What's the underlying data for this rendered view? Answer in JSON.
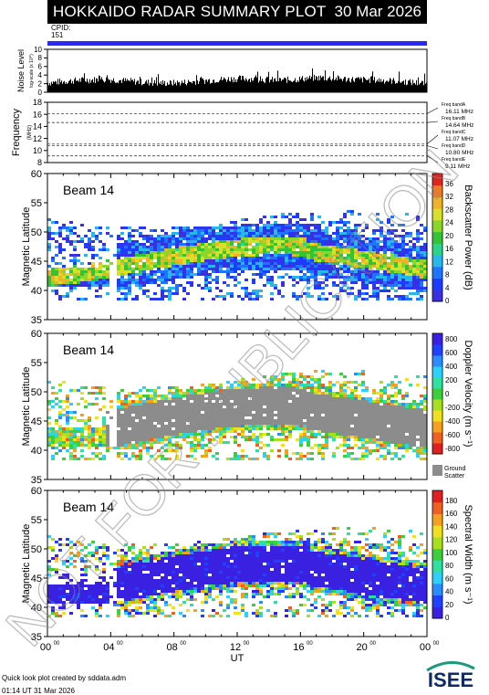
{
  "header": {
    "title": "HOKKAIDO RADAR SUMMARY PLOT",
    "date": "30 Mar 2026"
  },
  "cpid": {
    "label": "CPID:",
    "value": "151"
  },
  "watermark": "NOT FOR PUBLICATION",
  "footer": {
    "line1": "Quick look plot created by sddata.adm",
    "line2": "01:14 UT 31 Mar 2026"
  },
  "logo": "ISEE",
  "chart_data": [
    {
      "type": "bar",
      "ylabel": "Noise Level",
      "ylabel2": "log-scale (x 10^) ",
      "ylim": [
        0,
        10
      ],
      "yticks": [
        "0",
        "2",
        "4",
        "6",
        "8",
        "10"
      ],
      "xlim": [
        0,
        24
      ],
      "values": [
        2.2,
        2.5,
        2.8,
        2.9,
        3.0,
        2.7,
        2.4,
        2.2,
        2.1,
        2.3,
        2.6,
        2.9,
        3.1,
        3.2,
        3.0,
        2.8,
        2.9,
        3.2,
        3.4,
        3.2,
        3.0,
        2.9,
        2.8,
        2.6,
        2.3,
        2.0
      ]
    },
    {
      "type": "line",
      "ylabel": "Frequency",
      "unit": "(MHz)",
      "ylim": [
        8,
        18
      ],
      "yticks": [
        "8",
        "10",
        "12",
        "14",
        "16",
        "18"
      ],
      "bands": [
        {
          "label": "Freq bandA",
          "value": "16.11 MHz",
          "mhz": 16.11
        },
        {
          "label": "Freq bandB",
          "value": "14.64 MHz",
          "mhz": 14.64
        },
        {
          "label": "Freq bandC",
          "value": "11.07 MHz",
          "mhz": 11.07
        },
        {
          "label": "Freq bandD",
          "value": "10.80 MHz",
          "mhz": 10.8
        },
        {
          "label": "Freq bandE",
          "value": "9.11 MHz",
          "mhz": 9.11
        }
      ]
    },
    {
      "type": "heatmap",
      "title": "Beam 14",
      "ylabel": "Magnetic Latitude",
      "ylim": [
        35,
        60
      ],
      "yticks": [
        "35",
        "40",
        "45",
        "50",
        "55",
        "60"
      ],
      "colorbar": {
        "label": "Backscatter Power (dB)",
        "ticks": [
          "0",
          "4",
          "8",
          "12",
          "16",
          "20",
          "24",
          "28",
          "32",
          "36"
        ]
      }
    },
    {
      "type": "heatmap",
      "title": "Beam 14",
      "ylabel": "Magnetic Latitude",
      "ylim": [
        35,
        60
      ],
      "yticks": [
        "35",
        "40",
        "45",
        "50",
        "55",
        "60"
      ],
      "colorbar": {
        "label": "Doppler Velocity (m s⁻¹)",
        "ticks": [
          "800",
          "600",
          "400",
          "200",
          "0",
          "-200",
          "-400",
          "-600",
          "-800"
        ]
      },
      "ground_label": [
        "Ground",
        "Scatter"
      ]
    },
    {
      "type": "heatmap",
      "title": "Beam 14",
      "ylabel": "Magnetic Latitude",
      "ylim": [
        35,
        60
      ],
      "yticks": [
        "35",
        "40",
        "45",
        "50",
        "55",
        "60"
      ],
      "colorbar": {
        "label": "Spectral Width (m s⁻¹)",
        "ticks": [
          "0",
          "20",
          "40",
          "60",
          "80",
          "100",
          "120",
          "140",
          "160",
          "180"
        ]
      }
    }
  ],
  "xaxis": {
    "label": "UT",
    "ticks": [
      "00",
      "04",
      "08",
      "12",
      "16",
      "20",
      "00"
    ],
    "tick_sup": "00"
  }
}
